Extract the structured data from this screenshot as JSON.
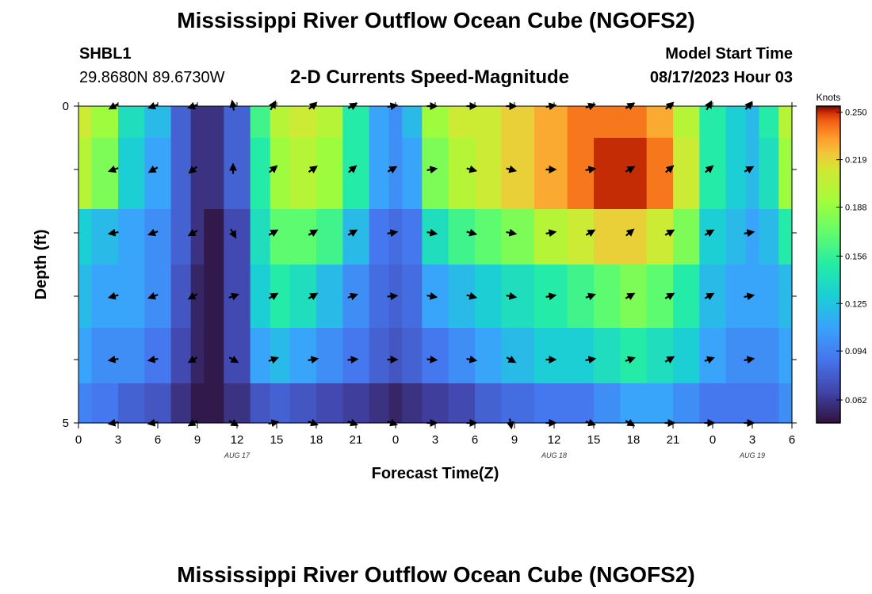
{
  "page": {
    "title_top": "Mississippi River Outflow Ocean Cube (NGOFS2)",
    "title_bottom": "Mississippi River Outflow Ocean Cube (NGOFS2)",
    "station_id": "SHBL1",
    "station_coords": "29.8680N  89.6730W",
    "subtitle": "2-D Currents Speed-Magnitude",
    "model_start_label": "Model Start Time",
    "model_start_value": "08/17/2023 Hour 03"
  },
  "chart_data": {
    "type": "heatmap",
    "title": "2-D Currents Speed-Magnitude",
    "xlabel": "Forecast Time(Z)",
    "ylabel": "Depth (ft)",
    "x_tick_labels": [
      "0",
      "3",
      "6",
      "9",
      "12",
      "15",
      "18",
      "21",
      "0",
      "3",
      "6",
      "9",
      "12",
      "15",
      "18",
      "21",
      "0",
      "3",
      "6"
    ],
    "x_range": [
      0,
      54
    ],
    "y_range": [
      0,
      5
    ],
    "y_tick_labels": [
      {
        "value": 0,
        "label": "0"
      },
      {
        "value": 1,
        "label": ""
      },
      {
        "value": 2,
        "label": ""
      },
      {
        "value": 3,
        "label": ""
      },
      {
        "value": 4,
        "label": ""
      },
      {
        "value": 5,
        "label": "5"
      }
    ],
    "date_labels": [
      {
        "hour": 12,
        "label": "AUG 17"
      },
      {
        "hour": 36,
        "label": "AUG 18"
      },
      {
        "hour": 51,
        "label": "AUG 19"
      }
    ],
    "colorbar": {
      "unit": "Knots",
      "min": 0.047,
      "max": 0.254,
      "ticks": [
        "0.250",
        "0.219",
        "0.188",
        "0.156",
        "0.125",
        "0.094",
        "0.062"
      ]
    },
    "x_hours": [
      0,
      2,
      4,
      6,
      8,
      9,
      10,
      12,
      14,
      15,
      17,
      19,
      21,
      23,
      24,
      25,
      27,
      29,
      31,
      33,
      36,
      38,
      40,
      42,
      44,
      46,
      48,
      50,
      51,
      52,
      54
    ],
    "depth_rows": [
      {
        "depth": 0.25,
        "speed": [
          0.21,
          0.19,
          0.14,
          0.12,
          0.08,
          0.06,
          0.06,
          0.08,
          0.16,
          0.2,
          0.21,
          0.2,
          0.15,
          0.11,
          0.1,
          0.12,
          0.19,
          0.21,
          0.21,
          0.22,
          0.23,
          0.24,
          0.24,
          0.24,
          0.23,
          0.2,
          0.15,
          0.13,
          0.12,
          0.15,
          0.2
        ]
      },
      {
        "depth": 0.75,
        "speed": [
          0.2,
          0.18,
          0.13,
          0.11,
          0.08,
          0.06,
          0.06,
          0.08,
          0.15,
          0.19,
          0.2,
          0.19,
          0.15,
          0.11,
          0.1,
          0.11,
          0.18,
          0.2,
          0.21,
          0.22,
          0.23,
          0.24,
          0.25,
          0.25,
          0.24,
          0.21,
          0.15,
          0.13,
          0.12,
          0.14,
          0.19
        ]
      },
      {
        "depth": 1.25,
        "speed": [
          0.2,
          0.18,
          0.13,
          0.11,
          0.08,
          0.06,
          0.06,
          0.08,
          0.15,
          0.19,
          0.2,
          0.19,
          0.15,
          0.11,
          0.1,
          0.11,
          0.18,
          0.2,
          0.21,
          0.22,
          0.23,
          0.24,
          0.25,
          0.25,
          0.24,
          0.21,
          0.15,
          0.13,
          0.12,
          0.14,
          0.19
        ]
      },
      {
        "depth": 2.0,
        "speed": [
          0.13,
          0.12,
          0.11,
          0.1,
          0.08,
          0.06,
          0.05,
          0.07,
          0.14,
          0.17,
          0.17,
          0.16,
          0.12,
          0.09,
          0.085,
          0.09,
          0.14,
          0.16,
          0.17,
          0.18,
          0.2,
          0.21,
          0.22,
          0.22,
          0.21,
          0.18,
          0.13,
          0.12,
          0.11,
          0.12,
          0.15
        ]
      },
      {
        "depth": 3.0,
        "speed": [
          0.12,
          0.11,
          0.11,
          0.1,
          0.075,
          0.055,
          0.05,
          0.07,
          0.13,
          0.15,
          0.14,
          0.12,
          0.1,
          0.085,
          0.08,
          0.085,
          0.11,
          0.12,
          0.13,
          0.14,
          0.15,
          0.16,
          0.17,
          0.18,
          0.17,
          0.15,
          0.12,
          0.11,
          0.11,
          0.11,
          0.12
        ]
      },
      {
        "depth": 4.0,
        "speed": [
          0.11,
          0.1,
          0.1,
          0.09,
          0.07,
          0.055,
          0.05,
          0.07,
          0.11,
          0.12,
          0.11,
          0.1,
          0.09,
          0.08,
          0.075,
          0.08,
          0.09,
          0.1,
          0.11,
          0.12,
          0.13,
          0.13,
          0.14,
          0.15,
          0.14,
          0.13,
          0.11,
          0.1,
          0.1,
          0.1,
          0.11
        ]
      },
      {
        "depth": 4.75,
        "speed": [
          0.095,
          0.09,
          0.08,
          0.075,
          0.06,
          0.05,
          0.05,
          0.06,
          0.075,
          0.08,
          0.075,
          0.07,
          0.065,
          0.06,
          0.055,
          0.06,
          0.065,
          0.07,
          0.08,
          0.085,
          0.09,
          0.09,
          0.1,
          0.11,
          0.11,
          0.1,
          0.09,
          0.09,
          0.09,
          0.09,
          0.1
        ]
      }
    ],
    "arrow_hours": [
      2.7,
      5.7,
      8.7,
      11.7,
      14.7,
      17.7,
      20.7,
      23.7,
      26.7,
      29.7,
      32.7,
      35.7,
      38.7,
      41.7,
      44.7,
      47.7,
      50.7
    ],
    "arrow_depths": [
      0,
      1,
      2,
      3,
      4,
      5
    ],
    "arrow_angles_deg": [
      [
        -150,
        -160,
        -160,
        100,
        60,
        40,
        30,
        10,
        0,
        0,
        0,
        10,
        20,
        30,
        40,
        60,
        50
      ],
      [
        -160,
        -150,
        -140,
        90,
        40,
        35,
        40,
        30,
        10,
        -15,
        -15,
        0,
        10,
        30,
        40,
        40,
        30
      ],
      [
        -170,
        -160,
        -150,
        -60,
        30,
        30,
        30,
        10,
        -10,
        -15,
        -10,
        10,
        30,
        40,
        30,
        30,
        10
      ],
      [
        -165,
        -160,
        -150,
        20,
        30,
        30,
        20,
        5,
        -10,
        -15,
        -10,
        10,
        20,
        30,
        30,
        30,
        10
      ],
      [
        -170,
        -170,
        -150,
        -30,
        20,
        10,
        5,
        0,
        -5,
        -10,
        -30,
        0,
        10,
        20,
        30,
        20,
        10
      ],
      [
        -170,
        -170,
        -150,
        -30,
        10,
        -20,
        -20,
        -20,
        0,
        0,
        -80,
        0,
        -20,
        -30,
        0,
        0,
        0
      ]
    ]
  }
}
